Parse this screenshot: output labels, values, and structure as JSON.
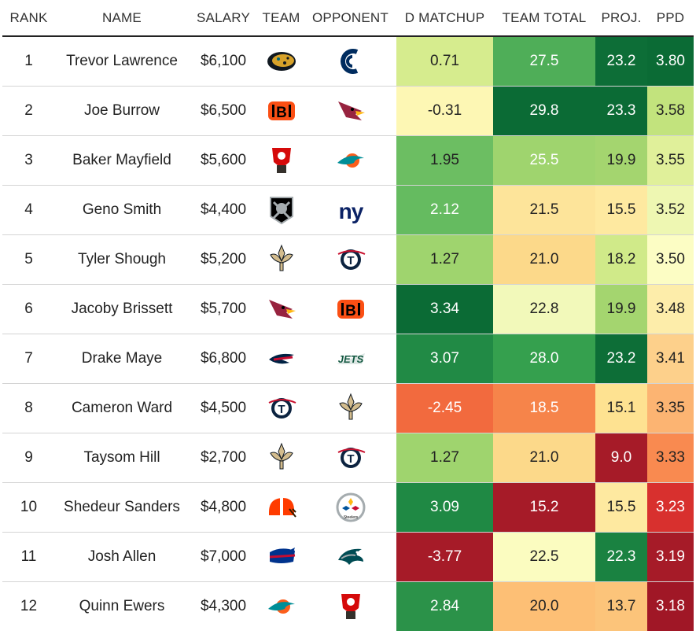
{
  "headers": {
    "rank": "RANK",
    "name": "NAME",
    "salary": "SALARY",
    "team": "TEAM",
    "opponent": "OPPONENT",
    "d_matchup": "D MATCHUP",
    "team_total": "TEAM TOTAL",
    "proj": "PROJ.",
    "ppd": "PPD"
  },
  "rows": [
    {
      "rank": "1",
      "name": "Trevor Lawrence",
      "salary": "$6,100",
      "team": "jaguars-logo-icon",
      "opponent": "colts-logo-icon",
      "d_matchup": "0.71",
      "team_total": "27.5",
      "proj": "23.2",
      "ppd": "3.80"
    },
    {
      "rank": "2",
      "name": "Joe Burrow",
      "salary": "$6,500",
      "team": "bengals-logo-icon",
      "opponent": "cardinals-logo-icon",
      "d_matchup": "-0.31",
      "team_total": "29.8",
      "proj": "23.3",
      "ppd": "3.58"
    },
    {
      "rank": "3",
      "name": "Baker Mayfield",
      "salary": "$5,600",
      "team": "buccaneers-logo-icon",
      "opponent": "dolphins-logo-icon",
      "d_matchup": "1.95",
      "team_total": "25.5",
      "proj": "19.9",
      "ppd": "3.55"
    },
    {
      "rank": "4",
      "name": "Geno Smith",
      "salary": "$4,400",
      "team": "raiders-logo-icon",
      "opponent": "giants-logo-icon",
      "d_matchup": "2.12",
      "team_total": "21.5",
      "proj": "15.5",
      "ppd": "3.52"
    },
    {
      "rank": "5",
      "name": "Tyler Shough",
      "salary": "$5,200",
      "team": "saints-logo-icon",
      "opponent": "titans-logo-icon",
      "d_matchup": "1.27",
      "team_total": "21.0",
      "proj": "18.2",
      "ppd": "3.50"
    },
    {
      "rank": "6",
      "name": "Jacoby Brissett",
      "salary": "$5,700",
      "team": "cardinals-logo-icon",
      "opponent": "bengals-logo-icon",
      "d_matchup": "3.34",
      "team_total": "22.8",
      "proj": "19.9",
      "ppd": "3.48"
    },
    {
      "rank": "7",
      "name": "Drake Maye",
      "salary": "$6,800",
      "team": "patriots-logo-icon",
      "opponent": "jets-logo-icon",
      "d_matchup": "3.07",
      "team_total": "28.0",
      "proj": "23.2",
      "ppd": "3.41"
    },
    {
      "rank": "8",
      "name": "Cameron Ward",
      "salary": "$4,500",
      "team": "titans-logo-icon",
      "opponent": "saints-logo-icon",
      "d_matchup": "-2.45",
      "team_total": "18.5",
      "proj": "15.1",
      "ppd": "3.35"
    },
    {
      "rank": "9",
      "name": "Taysom Hill",
      "salary": "$2,700",
      "team": "saints-logo-icon",
      "opponent": "titans-logo-icon",
      "d_matchup": "1.27",
      "team_total": "21.0",
      "proj": "9.0",
      "ppd": "3.33"
    },
    {
      "rank": "10",
      "name": "Shedeur Sanders",
      "salary": "$4,800",
      "team": "browns-logo-icon",
      "opponent": "steelers-logo-icon",
      "d_matchup": "3.09",
      "team_total": "15.2",
      "proj": "15.5",
      "ppd": "3.23"
    },
    {
      "rank": "11",
      "name": "Josh Allen",
      "salary": "$7,000",
      "team": "bills-logo-icon",
      "opponent": "eagles-logo-icon",
      "d_matchup": "-3.77",
      "team_total": "22.5",
      "proj": "22.3",
      "ppd": "3.19"
    },
    {
      "rank": "12",
      "name": "Quinn Ewers",
      "salary": "$4,300",
      "team": "dolphins-logo-icon",
      "opponent": "buccaneers-logo-icon",
      "d_matchup": "2.84",
      "team_total": "20.0",
      "proj": "13.7",
      "ppd": "3.18"
    }
  ],
  "cell_colors": {
    "d_matchup": [
      "#d6ec8e",
      "#fdf7b4",
      "#6cbe62",
      "#65bb60",
      "#9fd46e",
      "#0b6b35",
      "#218a45",
      "#f26a3e",
      "#9fd46e",
      "#1f8944",
      "#a61b28",
      "#2b9249"
    ],
    "team_total": [
      "#4fae58",
      "#0b6b35",
      "#9fd46e",
      "#fde49a",
      "#fcd98a",
      "#f2f9ba",
      "#35a04e",
      "#f6844a",
      "#fcd98a",
      "#a61b28",
      "#fbfcc0",
      "#fdbf75"
    ],
    "proj": [
      "#0d6e37",
      "#0b6b35",
      "#a4d56f",
      "#fee9a0",
      "#d0ea89",
      "#a4d56f",
      "#0d6e37",
      "#fee291",
      "#a61b28",
      "#fee9a0",
      "#1a8241",
      "#fcc47a"
    ],
    "ppd": [
      "#0b6b35",
      "#c2e37d",
      "#e0f09a",
      "#eef7b2",
      "#fcfdc4",
      "#fdedaa",
      "#fdd08b",
      "#fcb472",
      "#f98a50",
      "#d8302e",
      "#a61b28",
      "#a01726"
    ]
  },
  "text_colors": {
    "d_matchup": [
      "#222222",
      "#222222",
      "#222222",
      "#ffffff",
      "#222222",
      "#ffffff",
      "#ffffff",
      "#ffffff",
      "#222222",
      "#ffffff",
      "#ffffff",
      "#ffffff"
    ],
    "team_total": [
      "#ffffff",
      "#ffffff",
      "#ffffff",
      "#222222",
      "#222222",
      "#222222",
      "#ffffff",
      "#ffffff",
      "#222222",
      "#ffffff",
      "#222222",
      "#222222"
    ],
    "proj": [
      "#ffffff",
      "#ffffff",
      "#222222",
      "#222222",
      "#222222",
      "#222222",
      "#ffffff",
      "#222222",
      "#ffffff",
      "#222222",
      "#ffffff",
      "#222222"
    ],
    "ppd": [
      "#ffffff",
      "#222222",
      "#222222",
      "#222222",
      "#222222",
      "#222222",
      "#222222",
      "#222222",
      "#222222",
      "#ffffff",
      "#ffffff",
      "#ffffff"
    ]
  }
}
